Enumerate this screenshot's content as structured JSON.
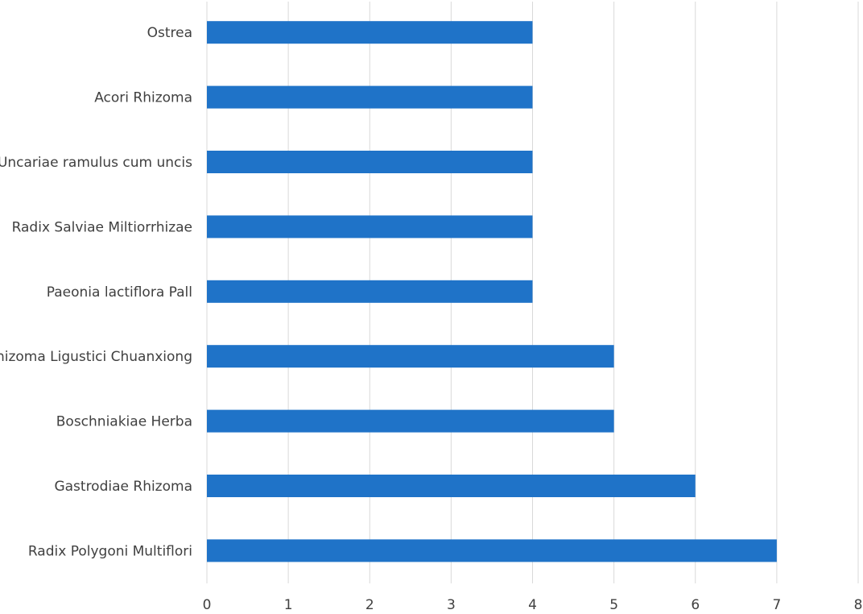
{
  "chart_data": {
    "type": "bar",
    "orientation": "horizontal",
    "title": "",
    "xlabel": "",
    "ylabel": "",
    "categories": [
      "Ostrea",
      "Acori Rhizoma",
      "Uncariae ramulus cum uncis",
      "Radix Salviae Miltiorrhizae",
      "Paeonia lactiflora Pall",
      "Rhizoma Ligustici Chuanxiong",
      "Boschniakiae Herba",
      "Gastrodiae Rhizoma",
      "Radix Polygoni Multiflori"
    ],
    "values": [
      4,
      4,
      4,
      4,
      4,
      5,
      5,
      6,
      7
    ],
    "xlim": [
      0,
      8
    ],
    "x_ticks": [
      "0",
      "1",
      "2",
      "3",
      "4",
      "5",
      "6",
      "7",
      "8"
    ],
    "grid": "vertical",
    "legend": "none",
    "bar_color": "#1f73c8",
    "grid_color": "#d9d9d9",
    "text_color": "#404040"
  }
}
